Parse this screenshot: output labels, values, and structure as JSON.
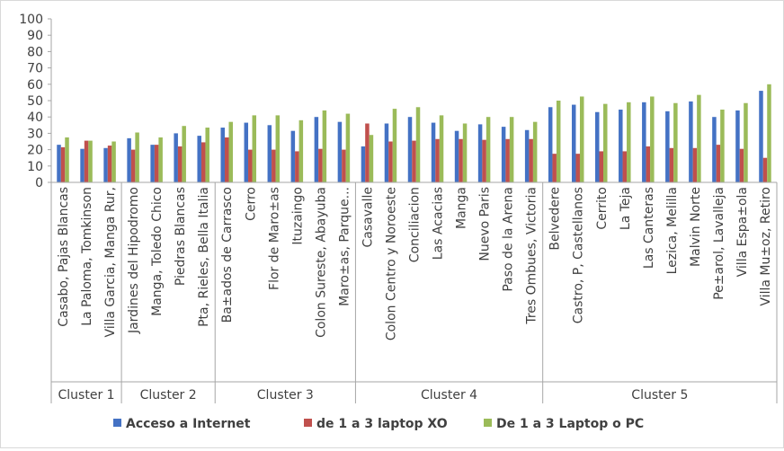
{
  "chart_data": {
    "type": "bar",
    "ylim": [
      0,
      100
    ],
    "yticks": [
      0,
      10,
      20,
      30,
      40,
      50,
      60,
      70,
      80,
      90,
      100
    ],
    "grid": false,
    "legend_position": "bottom",
    "categories": [
      "Casabo, Pajas Blancas",
      "La Paloma, Tomkinson",
      "Villa Garcia, Manga Rur,",
      "Jardines del Hipodromo",
      "Manga, Toledo Chico",
      "Piedras Blancas",
      "Pta, Rieles, Bella Italia",
      "Ba±ados de Carrasco",
      "Cerro",
      "Flor de Maro±as",
      "Ituzaingo",
      "Colon Sureste, Abayuba",
      "Maro±as, Parque...",
      "Casavalle",
      "Colon Centro y Noroeste",
      "Conciliacion",
      "Las Acacias",
      "Manga",
      "Nuevo Paris",
      "Paso de la Arena",
      "Tres Ombues, Victoria",
      "Belvedere",
      "Castro, P, Castellanos",
      "Cerrito",
      "La Teja",
      "Las Canteras",
      "Lezica, Melilla",
      "Malvin Norte",
      "Pe±arol, Lavalleja",
      "Villa Espa±ola",
      "Villa Mu±oz, Retiro"
    ],
    "groups": [
      {
        "label": "Cluster 1",
        "count": 3
      },
      {
        "label": "Cluster 2",
        "count": 4
      },
      {
        "label": "Cluster 3",
        "count": 6
      },
      {
        "label": "Cluster 4",
        "count": 8
      },
      {
        "label": "Cluster 5",
        "count": 10
      }
    ],
    "series": [
      {
        "name": "Acceso a Internet",
        "color": "#4472c4",
        "values": [
          23,
          20.5,
          21,
          27,
          23,
          30,
          28.5,
          33.5,
          36.5,
          35,
          31.5,
          40,
          37,
          22,
          36,
          40,
          36.5,
          31.5,
          35.5,
          34,
          32,
          46,
          47.5,
          43,
          44.5,
          49,
          43.5,
          49.5,
          40,
          44,
          56
        ]
      },
      {
        "name": "de 1 a 3 laptop XO",
        "color": "#c0504d",
        "values": [
          21.5,
          25.5,
          22.5,
          20,
          23,
          22,
          24.5,
          27.5,
          20,
          20,
          19,
          20.5,
          20,
          36,
          25,
          25.5,
          26.5,
          26.5,
          26,
          26.5,
          26.5,
          17.5,
          17.5,
          19,
          19,
          22,
          21,
          21,
          23,
          20.5,
          15
        ]
      },
      {
        "name": "De 1 a 3 Laptop o PC",
        "color": "#9bbb59",
        "values": [
          27.5,
          25.5,
          25,
          30.5,
          27.5,
          34.5,
          33.5,
          37,
          41,
          41,
          38,
          44,
          42,
          29,
          45,
          46,
          41,
          36,
          40,
          40,
          37,
          50,
          52.5,
          48,
          49,
          52.5,
          48.5,
          53.5,
          44.5,
          48.5,
          60
        ]
      }
    ]
  }
}
